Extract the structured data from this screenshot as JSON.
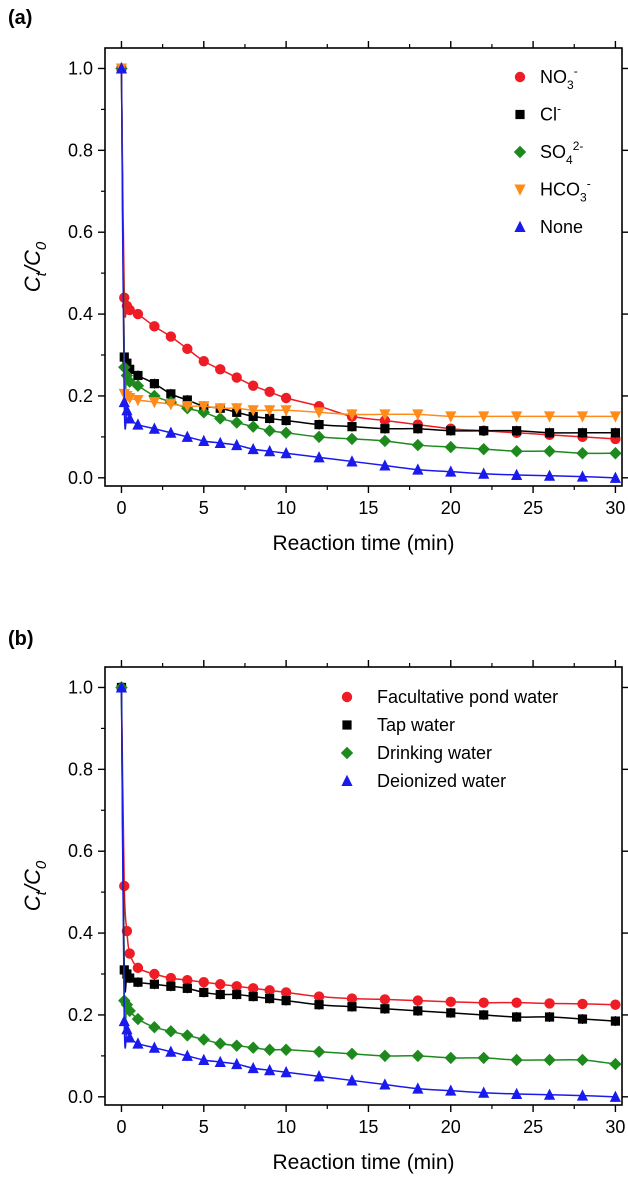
{
  "chart_data": [
    {
      "panel_label": "(a)",
      "type": "scatter",
      "xlabel": "Reaction time (min)",
      "ylabel": {
        "main": "C",
        "sub1": "t",
        "sep": "/C",
        "sub2": "0"
      },
      "xlim": [
        -1,
        30.4
      ],
      "ylim": [
        -0.02,
        1.05
      ],
      "xticks": [
        0,
        5,
        10,
        15,
        20,
        25,
        30
      ],
      "yticks": [
        0.0,
        0.2,
        0.4,
        0.6,
        0.8,
        1.0
      ],
      "ytick_labels": [
        "0.0",
        "0.2",
        "0.4",
        "0.6",
        "0.8",
        "1.0"
      ],
      "legend_position": "top-right",
      "series": [
        {
          "legend": {
            "base": "NO",
            "sub": "3",
            "sup": "-"
          },
          "color": "#ee1c24",
          "marker": "circle",
          "x": [
            0,
            0.17,
            0.33,
            0.5,
            1,
            2,
            3,
            4,
            5,
            6,
            7,
            8,
            9,
            10,
            12,
            14,
            16,
            18,
            20,
            22,
            24,
            26,
            28,
            30
          ],
          "y": [
            1.0,
            0.44,
            0.42,
            0.41,
            0.4,
            0.37,
            0.345,
            0.315,
            0.285,
            0.265,
            0.245,
            0.225,
            0.21,
            0.195,
            0.175,
            0.15,
            0.14,
            0.13,
            0.12,
            0.115,
            0.11,
            0.105,
            0.1,
            0.095
          ]
        },
        {
          "legend": {
            "base": "Cl",
            "sub": "",
            "sup": "-"
          },
          "color": "#000000",
          "marker": "square",
          "x": [
            0,
            0.17,
            0.33,
            0.5,
            1,
            2,
            3,
            4,
            5,
            6,
            7,
            8,
            9,
            10,
            12,
            14,
            16,
            18,
            20,
            22,
            24,
            26,
            28,
            30
          ],
          "y": [
            1.0,
            0.295,
            0.28,
            0.265,
            0.25,
            0.23,
            0.205,
            0.19,
            0.175,
            0.17,
            0.16,
            0.15,
            0.145,
            0.14,
            0.13,
            0.125,
            0.12,
            0.12,
            0.115,
            0.115,
            0.115,
            0.11,
            0.11,
            0.11
          ]
        },
        {
          "legend": {
            "base": "SO",
            "sub": "4",
            "sup": "2-"
          },
          "color": "#1e8a1e",
          "marker": "diamond",
          "x": [
            0,
            0.17,
            0.33,
            0.5,
            1,
            2,
            3,
            4,
            5,
            6,
            7,
            8,
            9,
            10,
            12,
            14,
            16,
            18,
            20,
            22,
            24,
            26,
            28,
            30
          ],
          "y": [
            1.0,
            0.27,
            0.25,
            0.235,
            0.225,
            0.2,
            0.185,
            0.17,
            0.16,
            0.145,
            0.135,
            0.125,
            0.115,
            0.11,
            0.1,
            0.095,
            0.09,
            0.08,
            0.075,
            0.07,
            0.065,
            0.065,
            0.06,
            0.06
          ]
        },
        {
          "legend": {
            "base": "HCO",
            "sub": "3",
            "sup": "-"
          },
          "color": "#ff8c1a",
          "marker": "triangle-down",
          "x": [
            0,
            0.17,
            0.33,
            0.5,
            1,
            2,
            3,
            4,
            5,
            6,
            7,
            8,
            9,
            10,
            12,
            14,
            16,
            18,
            20,
            22,
            24,
            26,
            28,
            30
          ],
          "y": [
            1.0,
            0.205,
            0.2,
            0.195,
            0.19,
            0.185,
            0.18,
            0.175,
            0.175,
            0.17,
            0.17,
            0.165,
            0.165,
            0.165,
            0.16,
            0.155,
            0.155,
            0.155,
            0.15,
            0.15,
            0.15,
            0.15,
            0.15,
            0.15
          ]
        },
        {
          "legend": {
            "base": "None",
            "sub": "",
            "sup": ""
          },
          "color": "#1a1aee",
          "marker": "triangle-up",
          "x": [
            0,
            0.17,
            0.33,
            0.5,
            1,
            2,
            3,
            4,
            5,
            6,
            7,
            8,
            9,
            10,
            12,
            14,
            16,
            18,
            20,
            22,
            24,
            26,
            28,
            30
          ],
          "y": [
            1.0,
            0.185,
            0.165,
            0.145,
            0.13,
            0.12,
            0.11,
            0.1,
            0.09,
            0.085,
            0.08,
            0.07,
            0.065,
            0.06,
            0.05,
            0.04,
            0.03,
            0.02,
            0.015,
            0.01,
            0.007,
            0.005,
            0.003,
            0.0
          ]
        }
      ]
    },
    {
      "panel_label": "(b)",
      "type": "scatter",
      "xlabel": "Reaction time (min)",
      "ylabel": {
        "main": "C",
        "sub1": "t",
        "sep": "/C",
        "sub2": "0"
      },
      "xlim": [
        -1,
        30.4
      ],
      "ylim": [
        -0.02,
        1.05
      ],
      "xticks": [
        0,
        5,
        10,
        15,
        20,
        25,
        30
      ],
      "yticks": [
        0.0,
        0.2,
        0.4,
        0.6,
        0.8,
        1.0
      ],
      "ytick_labels": [
        "0.0",
        "0.2",
        "0.4",
        "0.6",
        "0.8",
        "1.0"
      ],
      "legend_position": "top-right",
      "series": [
        {
          "legend": {
            "base": "Facultative pond water",
            "sub": "",
            "sup": ""
          },
          "color": "#ee1c24",
          "marker": "circle",
          "x": [
            0,
            0.17,
            0.33,
            0.5,
            1,
            2,
            3,
            4,
            5,
            6,
            7,
            8,
            9,
            10,
            12,
            14,
            16,
            18,
            20,
            22,
            24,
            26,
            28,
            30
          ],
          "y": [
            1.0,
            0.515,
            0.405,
            0.35,
            0.315,
            0.3,
            0.29,
            0.285,
            0.28,
            0.275,
            0.27,
            0.265,
            0.26,
            0.255,
            0.245,
            0.24,
            0.238,
            0.235,
            0.232,
            0.23,
            0.23,
            0.228,
            0.227,
            0.225
          ]
        },
        {
          "legend": {
            "base": "Tap water",
            "sub": "",
            "sup": ""
          },
          "color": "#000000",
          "marker": "square",
          "x": [
            0,
            0.17,
            0.33,
            0.5,
            1,
            2,
            3,
            4,
            5,
            6,
            7,
            8,
            9,
            10,
            12,
            14,
            16,
            18,
            20,
            22,
            24,
            26,
            28,
            30
          ],
          "y": [
            1.0,
            0.31,
            0.3,
            0.29,
            0.28,
            0.275,
            0.27,
            0.265,
            0.255,
            0.25,
            0.25,
            0.245,
            0.24,
            0.235,
            0.225,
            0.22,
            0.215,
            0.21,
            0.205,
            0.2,
            0.195,
            0.195,
            0.19,
            0.185
          ]
        },
        {
          "legend": {
            "base": "Drinking water",
            "sub": "",
            "sup": ""
          },
          "color": "#1e8a1e",
          "marker": "diamond",
          "x": [
            0,
            0.17,
            0.33,
            0.5,
            1,
            2,
            3,
            4,
            5,
            6,
            7,
            8,
            9,
            10,
            12,
            14,
            16,
            18,
            20,
            22,
            24,
            26,
            28,
            30
          ],
          "y": [
            1.0,
            0.235,
            0.225,
            0.21,
            0.19,
            0.17,
            0.16,
            0.15,
            0.14,
            0.13,
            0.125,
            0.12,
            0.115,
            0.115,
            0.11,
            0.105,
            0.1,
            0.1,
            0.095,
            0.095,
            0.09,
            0.09,
            0.09,
            0.08
          ]
        },
        {
          "legend": {
            "base": "Deionized water",
            "sub": "",
            "sup": ""
          },
          "color": "#1a1aee",
          "marker": "triangle-up",
          "x": [
            0,
            0.17,
            0.33,
            0.5,
            1,
            2,
            3,
            4,
            5,
            6,
            7,
            8,
            9,
            10,
            12,
            14,
            16,
            18,
            20,
            22,
            24,
            26,
            28,
            30
          ],
          "y": [
            1.0,
            0.185,
            0.165,
            0.145,
            0.13,
            0.12,
            0.11,
            0.1,
            0.09,
            0.085,
            0.08,
            0.07,
            0.065,
            0.06,
            0.05,
            0.04,
            0.03,
            0.02,
            0.015,
            0.01,
            0.007,
            0.005,
            0.003,
            0.0
          ]
        }
      ]
    }
  ]
}
